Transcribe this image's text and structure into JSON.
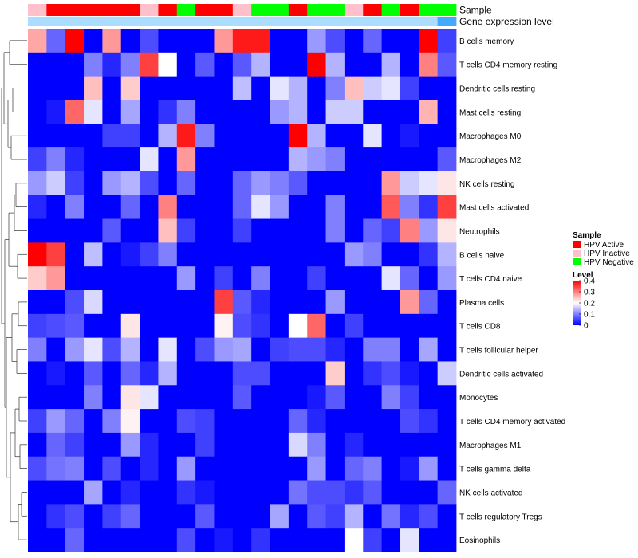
{
  "chart_data": {
    "type": "heatmap",
    "title": "",
    "annotation_tracks": [
      {
        "name": "Sample",
        "values": [
          "HPV Inactive",
          "HPV Active",
          "HPV Active",
          "HPV Active",
          "HPV Active",
          "HPV Active",
          "HPV Inactive",
          "HPV Active",
          "HPV Negative",
          "HPV Active",
          "HPV Active",
          "HPV Inactive",
          "HPV Negative",
          "HPV Negative",
          "HPV Active",
          "HPV Negative",
          "HPV Negative",
          "HPV Inactive",
          "HPV Active",
          "HPV Negative",
          "HPV Active",
          "HPV Negative",
          "HPV Negative"
        ]
      },
      {
        "name": "Gene expression level",
        "values": [
          0.5,
          0.5,
          0.5,
          0.5,
          0.5,
          0.5,
          0.5,
          0.5,
          0.5,
          0.5,
          0.5,
          0.5,
          0.5,
          0.5,
          0.5,
          0.5,
          0.5,
          0.5,
          0.5,
          0.5,
          0.5,
          0.5,
          0.7
        ]
      }
    ],
    "row_labels": [
      "B cells memory",
      "T cells CD4 memory resting",
      "Dendritic cells resting",
      "Mast cells resting",
      "Macrophages M0",
      "Macrophages M2",
      "NK cells resting",
      "Mast cells activated",
      "Neutrophils",
      "B cells naive",
      "T cells CD4 naive",
      "Plasma cells",
      "T cells CD8",
      "T cells follicular helper",
      "Dendritic cells activated",
      "Monocytes",
      "T cells CD4 memory activated",
      "Macrophages M1",
      "T cells gamma delta",
      "NK cells activated",
      "T cells regulatory  Tregs",
      "Eosinophils"
    ],
    "values": [
      [
        0.27,
        0.08,
        0.4,
        0.0,
        0.28,
        0.0,
        0.06,
        0.0,
        0.0,
        0.0,
        0.28,
        0.38,
        0.38,
        0.0,
        0.0,
        0.12,
        0.06,
        0.0,
        0.08,
        0.0,
        0.0,
        0.4,
        0.05
      ],
      [
        0.0,
        0.0,
        0.0,
        0.1,
        0.03,
        0.1,
        0.35,
        0.2,
        0.0,
        0.07,
        0.0,
        0.07,
        0.14,
        0.0,
        0.0,
        0.4,
        0.14,
        0.0,
        0.0,
        0.14,
        0.0,
        0.3,
        0.07
      ],
      [
        0.0,
        0.0,
        0.0,
        0.25,
        0.0,
        0.24,
        0.0,
        0.0,
        0.0,
        0.0,
        0.0,
        0.15,
        0.0,
        0.18,
        0.14,
        0.0,
        0.1,
        0.25,
        0.16,
        0.18,
        0.05,
        0.0,
        0.0
      ],
      [
        0.0,
        0.02,
        0.32,
        0.18,
        0.0,
        0.13,
        0.0,
        0.04,
        0.1,
        0.0,
        0.0,
        0.0,
        0.0,
        0.12,
        0.14,
        0.0,
        0.16,
        0.16,
        0.0,
        0.0,
        0.0,
        0.26,
        0.0
      ],
      [
        0.0,
        0.0,
        0.0,
        0.0,
        0.05,
        0.05,
        0.0,
        0.14,
        0.38,
        0.1,
        0.0,
        0.0,
        0.0,
        0.0,
        0.4,
        0.14,
        0.0,
        0.0,
        0.18,
        0.0,
        0.02,
        0.0,
        0.0
      ],
      [
        0.05,
        0.1,
        0.03,
        0.0,
        0.0,
        0.0,
        0.18,
        0.0,
        0.28,
        0.0,
        0.0,
        0.0,
        0.0,
        0.0,
        0.14,
        0.12,
        0.1,
        0.0,
        0.0,
        0.0,
        0.0,
        0.0,
        0.07
      ],
      [
        0.12,
        0.16,
        0.05,
        0.0,
        0.12,
        0.14,
        0.06,
        0.0,
        0.08,
        0.0,
        0.0,
        0.08,
        0.12,
        0.1,
        0.07,
        0.0,
        0.0,
        0.0,
        0.0,
        0.28,
        0.16,
        0.18,
        0.22
      ],
      [
        0.03,
        0.0,
        0.1,
        0.0,
        0.0,
        0.08,
        0.0,
        0.3,
        0.0,
        0.0,
        0.0,
        0.08,
        0.18,
        0.12,
        0.0,
        0.0,
        0.1,
        0.0,
        0.0,
        0.33,
        0.1,
        0.04,
        0.35
      ],
      [
        0.0,
        0.0,
        0.0,
        0.0,
        0.07,
        0.0,
        0.0,
        0.25,
        0.05,
        0.0,
        0.0,
        0.05,
        0.0,
        0.0,
        0.0,
        0.0,
        0.1,
        0.0,
        0.08,
        0.05,
        0.3,
        0.12,
        0.22
      ],
      [
        0.4,
        0.35,
        0.0,
        0.15,
        0.0,
        0.02,
        0.05,
        0.1,
        0.0,
        0.0,
        0.0,
        0.0,
        0.0,
        0.0,
        0.0,
        0.0,
        0.0,
        0.12,
        0.1,
        0.0,
        0.0,
        0.04,
        0.14
      ],
      [
        0.24,
        0.28,
        0.0,
        0.0,
        0.0,
        0.0,
        0.0,
        0.0,
        0.12,
        0.0,
        0.05,
        0.0,
        0.1,
        0.0,
        0.0,
        0.05,
        0.0,
        0.0,
        0.0,
        0.18,
        0.08,
        0.0,
        0.12
      ],
      [
        0.0,
        0.0,
        0.06,
        0.17,
        0.0,
        0.0,
        0.0,
        0.0,
        0.0,
        0.0,
        0.35,
        0.07,
        0.03,
        0.0,
        0.0,
        0.0,
        0.12,
        0.0,
        0.0,
        0.0,
        0.28,
        0.08,
        0.0
      ],
      [
        0.05,
        0.06,
        0.07,
        0.0,
        0.0,
        0.22,
        0.0,
        0.0,
        0.0,
        0.0,
        0.21,
        0.06,
        0.04,
        0.0,
        0.2,
        0.32,
        0.0,
        0.05,
        0.0,
        0.0,
        0.0,
        0.0,
        0.0
      ],
      [
        0.1,
        0.0,
        0.12,
        0.18,
        0.06,
        0.14,
        0.0,
        0.18,
        0.0,
        0.06,
        0.12,
        0.13,
        0.0,
        0.05,
        0.06,
        0.06,
        0.03,
        0.0,
        0.1,
        0.1,
        0.0,
        0.13,
        0.0
      ],
      [
        0.0,
        0.02,
        0.0,
        0.07,
        0.0,
        0.08,
        0.03,
        0.14,
        0.0,
        0.0,
        0.0,
        0.06,
        0.06,
        0.0,
        0.0,
        0.0,
        0.24,
        0.0,
        0.04,
        0.06,
        0.02,
        0.0,
        0.16
      ],
      [
        0.0,
        0.0,
        0.0,
        0.1,
        0.0,
        0.22,
        0.18,
        0.0,
        0.0,
        0.0,
        0.0,
        0.07,
        0.0,
        0.0,
        0.0,
        0.02,
        0.07,
        0.0,
        0.0,
        0.1,
        0.05,
        0.0,
        0.0
      ],
      [
        0.05,
        0.12,
        0.08,
        0.0,
        0.1,
        0.21,
        0.0,
        0.0,
        0.06,
        0.05,
        0.0,
        0.0,
        0.0,
        0.0,
        0.08,
        0.03,
        0.0,
        0.0,
        0.0,
        0.0,
        0.06,
        0.04,
        0.0
      ],
      [
        0.0,
        0.08,
        0.05,
        0.0,
        0.0,
        0.12,
        0.03,
        0.0,
        0.0,
        0.05,
        0.0,
        0.0,
        0.0,
        0.0,
        0.17,
        0.1,
        0.0,
        0.03,
        0.0,
        0.0,
        0.0,
        0.0,
        0.0
      ],
      [
        0.06,
        0.09,
        0.1,
        0.0,
        0.06,
        0.0,
        0.03,
        0.0,
        0.12,
        0.0,
        0.0,
        0.0,
        0.0,
        0.0,
        0.0,
        0.12,
        0.0,
        0.08,
        0.1,
        0.0,
        0.02,
        0.12,
        0.0
      ],
      [
        0.0,
        0.0,
        0.0,
        0.13,
        0.0,
        0.03,
        0.0,
        0.0,
        0.04,
        0.02,
        0.0,
        0.0,
        0.0,
        0.0,
        0.09,
        0.06,
        0.06,
        0.04,
        0.07,
        0.0,
        0.0,
        0.0,
        0.08
      ],
      [
        0.0,
        0.04,
        0.06,
        0.0,
        0.05,
        0.08,
        0.0,
        0.0,
        0.0,
        0.07,
        0.0,
        0.0,
        0.0,
        0.13,
        0.0,
        0.07,
        0.05,
        0.14,
        0.0,
        0.09,
        0.03,
        0.06,
        0.0
      ],
      [
        0.0,
        0.0,
        0.08,
        0.0,
        0.0,
        0.0,
        0.0,
        0.0,
        0.06,
        0.0,
        0.02,
        0.0,
        0.04,
        0.0,
        0.0,
        0.0,
        0.0,
        0.2,
        0.05,
        0.0,
        0.18,
        0.0,
        0.0
      ]
    ],
    "legend_sample": {
      "title": "Sample",
      "items": [
        {
          "label": "HPV Active",
          "color": "#ff0000"
        },
        {
          "label": "HPV Inactive",
          "color": "#ffc0cb"
        },
        {
          "label": "HPV Negative",
          "color": "#00ff00"
        }
      ]
    },
    "legend_level": {
      "title": "Level",
      "ticks": [
        "0.4",
        "0.3",
        "0.2",
        "0.1",
        "0"
      ],
      "tick_values": [
        0.4,
        0.3,
        0.2,
        0.1,
        0
      ],
      "range": [
        0,
        0.4
      ],
      "colors": {
        "low": "#0000ff",
        "mid": "#ffffff",
        "high": "#ff0000"
      }
    },
    "expression_track_colors": {
      "low": "#aaddff",
      "high": "#44aaff"
    }
  }
}
